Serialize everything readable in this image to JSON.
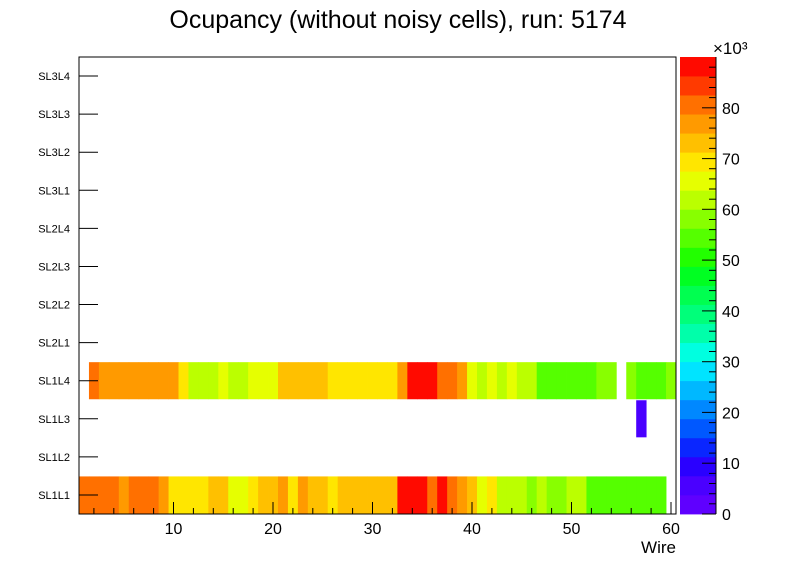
{
  "chart_data": {
    "type": "heatmap",
    "title": "Ocupancy (without noisy cells), run: 5174",
    "xlabel": "Wire",
    "ylabel": "",
    "xlim": [
      0.5,
      60.5
    ],
    "x_ticks": [
      10,
      20,
      30,
      40,
      50,
      60
    ],
    "y_categories": [
      "SL1L1",
      "SL1L2",
      "SL1L3",
      "SL1L4",
      "SL2L1",
      "SL2L2",
      "SL2L3",
      "SL2L4",
      "SL3L1",
      "SL3L2",
      "SL3L3",
      "SL3L4"
    ],
    "colorbar": {
      "min": 0,
      "max": 90000,
      "ticks": [
        0,
        10,
        20,
        30,
        40,
        50,
        60,
        70,
        80
      ],
      "exponent_label": "×10³",
      "palette": [
        "#5f00ff",
        "#4a00ff",
        "#2a00ff",
        "#0a26ff",
        "#0058ff",
        "#0088ff",
        "#00b8ff",
        "#00e4ff",
        "#00ffe0",
        "#00ffaa",
        "#00ff7a",
        "#00ff50",
        "#00ff22",
        "#22ff00",
        "#55ff00",
        "#88ff00",
        "#bbff00",
        "#e6ff00",
        "#ffe600",
        "#ffc000",
        "#ff9a00",
        "#ff7000",
        "#ff3a00",
        "#ff0a00"
      ]
    },
    "series": [
      {
        "name": "SL1L1",
        "x": [
          1,
          2,
          3,
          4,
          5,
          6,
          7,
          8,
          9,
          10,
          11,
          12,
          13,
          14,
          15,
          16,
          17,
          18,
          19,
          20,
          21,
          22,
          23,
          24,
          25,
          26,
          27,
          28,
          29,
          30,
          31,
          32,
          33,
          34,
          35,
          36,
          37,
          38,
          39,
          40,
          41,
          42,
          43,
          44,
          45,
          46,
          47,
          48,
          49,
          50,
          51,
          52,
          53,
          54,
          55,
          56,
          57,
          58,
          59
        ],
        "values": [
          81000,
          81000,
          81000,
          81000,
          76000,
          81000,
          81000,
          81000,
          75000,
          69000,
          69000,
          69000,
          69000,
          72000,
          72000,
          65000,
          65000,
          69000,
          72000,
          72000,
          76000,
          69000,
          76000,
          72000,
          72000,
          69000,
          72000,
          72000,
          72000,
          72000,
          72000,
          72000,
          88000,
          88000,
          88000,
          81000,
          88000,
          81000,
          76000,
          72000,
          65000,
          69000,
          62000,
          62000,
          62000,
          58000,
          62000,
          58000,
          58000,
          62000,
          62000,
          55000,
          55000,
          55000,
          55000,
          55000,
          55000,
          55000,
          55000
        ]
      },
      {
        "name": "SL1L3",
        "x": [
          57
        ],
        "values": [
          5000
        ]
      },
      {
        "name": "SL1L4",
        "x": [
          2,
          3,
          4,
          5,
          6,
          7,
          8,
          9,
          10,
          11,
          12,
          13,
          14,
          15,
          16,
          17,
          18,
          19,
          20,
          21,
          22,
          23,
          24,
          25,
          26,
          27,
          28,
          29,
          30,
          31,
          32,
          33,
          34,
          35,
          36,
          37,
          38,
          39,
          40,
          41,
          42,
          43,
          44,
          45,
          46,
          47,
          48,
          49,
          50,
          51,
          52,
          53,
          54,
          56,
          57,
          58,
          59,
          60
        ],
        "values": [
          81000,
          78000,
          78000,
          78000,
          78000,
          78000,
          78000,
          78000,
          76000,
          69000,
          62000,
          62000,
          62000,
          65000,
          62000,
          62000,
          65000,
          65000,
          65000,
          72000,
          72000,
          72000,
          72000,
          72000,
          69000,
          69000,
          69000,
          69000,
          69000,
          69000,
          69000,
          76000,
          88000,
          88000,
          88000,
          81000,
          81000,
          78000,
          65000,
          62000,
          65000,
          62000,
          65000,
          62000,
          62000,
          55000,
          55000,
          55000,
          55000,
          55000,
          55000,
          58000,
          58000,
          58000,
          55000,
          55000,
          55000,
          58000
        ]
      }
    ]
  }
}
